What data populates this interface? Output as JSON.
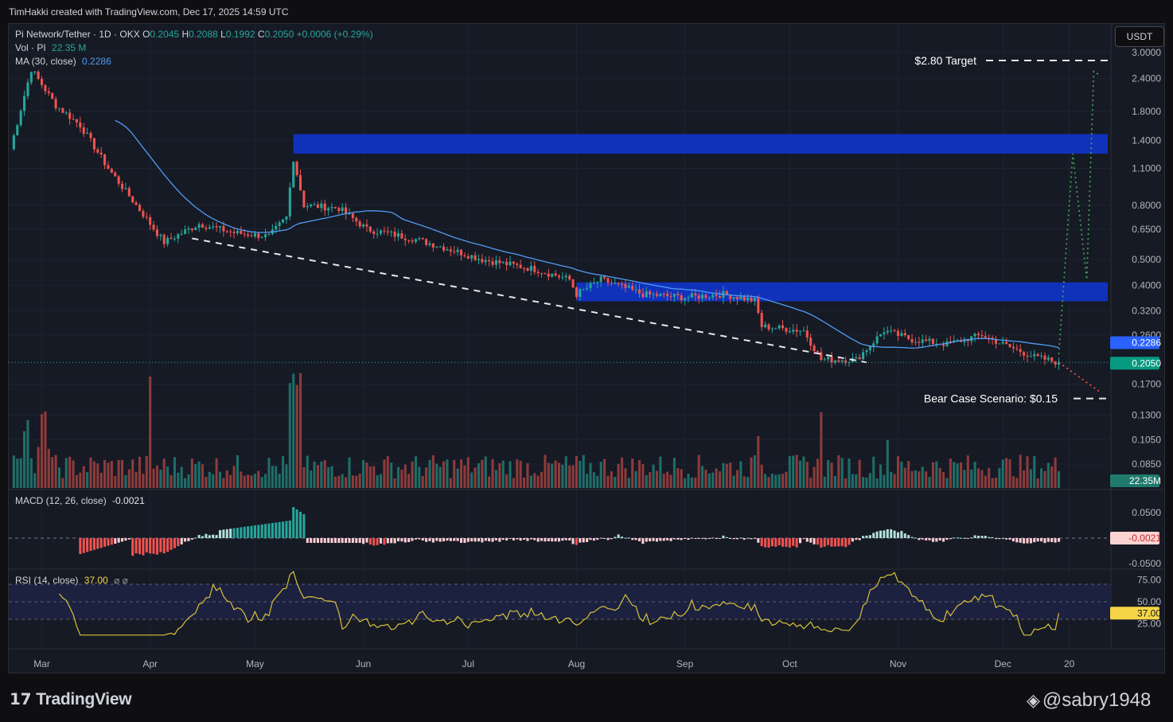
{
  "credit": "TimHakki created with TradingView.com, Dec 17, 2025 14:59 UTC",
  "symbol_line": {
    "title": "Pi Network/Tether · 1D · OKX",
    "o_label": "O",
    "o": "0.2045",
    "h_label": "H",
    "h": "0.2088",
    "l_label": "L",
    "l": "0.1992",
    "c_label": "C",
    "c": "0.2050",
    "change": "+0.0006 (+0.29%)"
  },
  "volume_line": {
    "label": "Vol · PI",
    "value": "22.35 M"
  },
  "ma_line": {
    "label": "MA (30, close)",
    "value": "0.2286"
  },
  "currency_button": "USDT",
  "annotations": {
    "target": "$2.80 Target",
    "bear": "Bear Case Scenario: $0.15"
  },
  "price_badges": {
    "ma": "0.2286",
    "last": "0.2050",
    "volume": "22.35M"
  },
  "macd": {
    "label": "MACD (12, 26, close)",
    "value": "-0.0021",
    "badge": "-0.0021",
    "ticks": [
      "0.0500",
      "-0.0500"
    ]
  },
  "rsi": {
    "label": "RSI (14, close)",
    "value": "37.00",
    "extra": "⌀ ⌀",
    "badge": "37.00",
    "ticks": [
      "75.00",
      "50.00",
      "25.00"
    ]
  },
  "brand": "TradingView",
  "watermark": "@sabry1948",
  "chart_data": {
    "type": "candlestick",
    "y_scale": "log",
    "price_ticks": [
      3.0,
      2.4,
      1.8,
      1.4,
      1.1,
      0.8,
      0.65,
      0.5,
      0.4,
      0.32,
      0.26,
      0.17,
      0.13,
      0.105,
      0.085
    ],
    "price_tick_labels": [
      "3.0000",
      "2.4000",
      "1.8000",
      "1.4000",
      "1.1000",
      "0.8000",
      "0.6500",
      "0.5000",
      "0.4000",
      "0.3200",
      "0.2600",
      "0.1700",
      "0.1300",
      "0.1050",
      "0.0850"
    ],
    "x_labels": [
      "Mar",
      "Apr",
      "May",
      "Jun",
      "Jul",
      "Aug",
      "Sep",
      "Oct",
      "Nov",
      "Dec",
      "20"
    ],
    "close_anchors": [
      [
        "2025-02-20",
        1.3
      ],
      [
        "2025-02-26",
        2.6
      ],
      [
        "2025-03-05",
        1.9
      ],
      [
        "2025-03-12",
        1.6
      ],
      [
        "2025-03-20",
        1.1
      ],
      [
        "2025-03-28",
        0.8
      ],
      [
        "2025-04-05",
        0.58
      ],
      [
        "2025-04-15",
        0.68
      ],
      [
        "2025-04-25",
        0.63
      ],
      [
        "2025-05-05",
        0.61
      ],
      [
        "2025-05-10",
        0.72
      ],
      [
        "2025-05-12",
        1.2
      ],
      [
        "2025-05-15",
        0.8
      ],
      [
        "2025-05-25",
        0.78
      ],
      [
        "2025-06-02",
        0.65
      ],
      [
        "2025-06-15",
        0.6
      ],
      [
        "2025-06-25",
        0.55
      ],
      [
        "2025-07-05",
        0.5
      ],
      [
        "2025-07-20",
        0.46
      ],
      [
        "2025-07-30",
        0.42
      ],
      [
        "2025-08-01",
        0.37
      ],
      [
        "2025-08-08",
        0.42
      ],
      [
        "2025-08-20",
        0.37
      ],
      [
        "2025-09-01",
        0.36
      ],
      [
        "2025-09-12",
        0.37
      ],
      [
        "2025-09-21",
        0.35
      ],
      [
        "2025-09-23",
        0.28
      ],
      [
        "2025-10-05",
        0.27
      ],
      [
        "2025-10-10",
        0.21
      ],
      [
        "2025-10-20",
        0.21
      ],
      [
        "2025-10-28",
        0.27
      ],
      [
        "2025-11-05",
        0.25
      ],
      [
        "2025-11-15",
        0.24
      ],
      [
        "2025-11-25",
        0.26
      ],
      [
        "2025-12-01",
        0.24
      ],
      [
        "2025-12-10",
        0.215
      ],
      [
        "2025-12-17",
        0.205
      ]
    ],
    "ma30_last": 0.2286,
    "zones": [
      {
        "from": "2025-05-12",
        "to": "2025-12-31",
        "low": 1.25,
        "high": 1.48
      },
      {
        "from": "2025-08-01",
        "to": "2025-12-31",
        "low": 0.348,
        "high": 0.41
      }
    ],
    "trendline": [
      [
        "2025-04-13",
        0.6
      ],
      [
        "2025-10-23",
        0.205
      ]
    ],
    "bull_path": [
      [
        "2025-12-17",
        0.22
      ],
      [
        "2025-12-21",
        1.25
      ],
      [
        "2025-12-25",
        0.42
      ],
      [
        "2025-12-27",
        2.55
      ],
      [
        "2025-12-29",
        2.45
      ]
    ],
    "bear_path": [
      [
        "2025-12-17",
        0.205
      ],
      [
        "2025-12-29",
        0.158
      ]
    ],
    "target_level": 2.8,
    "bear_level": 0.15,
    "rsi_levels": [
      70,
      50,
      30
    ],
    "rsi_last": 37.0,
    "macd_last": -0.0021
  },
  "colors": {
    "up": "#26a69a",
    "down": "#ef5350",
    "ma": "#4f9cf2",
    "zone": "#1034c8",
    "rsi": "#d8c23a"
  }
}
